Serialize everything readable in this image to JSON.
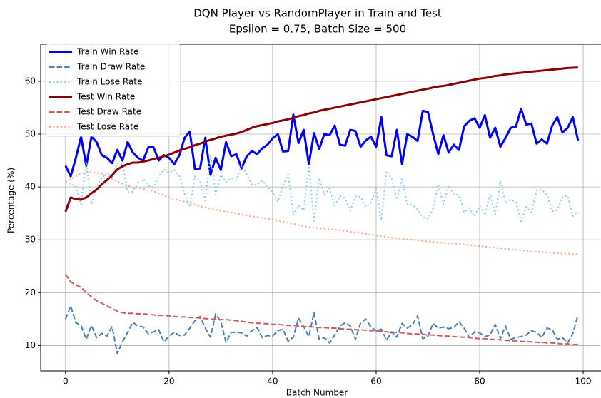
{
  "chart_data": {
    "type": "line",
    "title": "DQN Player vs RandomPlayer in Train and Test",
    "subtitle": "Epsilon = 0.75, Batch Size = 500",
    "x_label": "Batch Number",
    "y_label": "Percentage (%)",
    "x": [
      0,
      1,
      2,
      3,
      4,
      5,
      6,
      7,
      8,
      9,
      10,
      11,
      12,
      13,
      14,
      15,
      16,
      17,
      18,
      19,
      20,
      21,
      22,
      23,
      24,
      25,
      26,
      27,
      28,
      29,
      30,
      31,
      32,
      33,
      34,
      35,
      36,
      37,
      38,
      39,
      40,
      41,
      42,
      43,
      44,
      45,
      46,
      47,
      48,
      49,
      50,
      51,
      52,
      53,
      54,
      55,
      56,
      57,
      58,
      59,
      60,
      61,
      62,
      63,
      64,
      65,
      66,
      67,
      68,
      69,
      70,
      71,
      72,
      73,
      74,
      75,
      76,
      77,
      78,
      79,
      80,
      81,
      82,
      83,
      84,
      85,
      86,
      87,
      88,
      89,
      90,
      91,
      92,
      93,
      94,
      95,
      96,
      97,
      98,
      99
    ],
    "series": [
      {
        "name": "Train Win Rate",
        "color": "#0000ff",
        "linestyle": "solid",
        "linewidth": 3,
        "values": [
          44,
          42,
          45.5,
          49.5,
          44,
          49.5,
          48.5,
          46,
          45.5,
          44.5,
          47,
          45,
          48.5,
          46.5,
          45.5,
          45,
          47.5,
          47.5,
          45,
          46,
          45.5,
          44.3,
          46,
          49.3,
          50.5,
          43.3,
          43.5,
          49.3,
          42.3,
          45.5,
          43.2,
          48.5,
          45.8,
          46.2,
          43.5,
          45.8,
          46.8,
          46.2,
          47.3,
          48,
          49.2,
          50,
          46.7,
          46.8,
          53.7,
          48.3,
          50.8,
          44.3,
          50.2,
          47.2,
          50,
          49.8,
          51.6,
          48,
          47.8,
          50.8,
          50.6,
          47.6,
          48.8,
          49.5,
          47.6,
          53.2,
          46,
          45.8,
          50.8,
          44.3,
          50,
          49.5,
          48.7,
          54.4,
          54.2,
          50,
          46.2,
          49.8,
          46.5,
          48,
          47,
          51.5,
          52.5,
          53,
          51.2,
          53.6,
          49.3,
          51.2,
          47.6,
          49.3,
          51.2,
          51.4,
          54.8,
          51.8,
          52,
          48.2,
          49,
          48.2,
          51.6,
          53.2,
          50.3,
          51.2,
          53.2,
          48.8
        ]
      },
      {
        "name": "Train Draw Rate",
        "color": "#4682b4",
        "linestyle": "dashed",
        "linewidth": 2,
        "values": [
          15,
          17.5,
          14.3,
          13.8,
          11.2,
          13.8,
          11.5,
          12.3,
          11.8,
          13.6,
          8.5,
          10.7,
          12.5,
          14.4,
          13.7,
          13.5,
          12.2,
          12.6,
          13,
          10.7,
          11.8,
          12.5,
          11.9,
          12,
          13.3,
          14.7,
          15.5,
          13.3,
          11.6,
          16,
          14.5,
          10.6,
          12.5,
          12.5,
          12.4,
          11.8,
          12.8,
          13.4,
          11.5,
          11.9,
          11.8,
          12.8,
          13.1,
          10.8,
          11.6,
          15.2,
          13.6,
          11.7,
          16.2,
          11.2,
          11.5,
          10.5,
          12,
          13.7,
          14.3,
          13.7,
          11.2,
          14.3,
          15,
          13.5,
          12.8,
          13.1,
          11,
          12.6,
          11.6,
          14.2,
          13.3,
          13.9,
          15.6,
          11.3,
          11.8,
          14.2,
          13.3,
          13.5,
          13.2,
          13.4,
          14.5,
          13.3,
          11.5,
          12.6,
          12.4,
          11.7,
          12,
          14,
          11.3,
          13.7,
          11.2,
          11.5,
          11.7,
          12,
          12.8,
          12.5,
          11.5,
          13.3,
          13,
          11.2,
          11.5,
          10.5,
          12.3,
          15.8
        ]
      },
      {
        "name": "Train Lose Rate",
        "color": "#87ceeb",
        "linestyle": "dotted",
        "linewidth": 2,
        "values": [
          41,
          40.5,
          40.2,
          36.7,
          44.8,
          36.7,
          40,
          41.7,
          42.7,
          41.9,
          44.5,
          44.3,
          39,
          39.1,
          40.8,
          41.5,
          40.3,
          39.9,
          42,
          43.3,
          42.7,
          43.2,
          42.1,
          38.7,
          36.2,
          42,
          41,
          37.4,
          46.1,
          38.5,
          42.3,
          40.9,
          41.7,
          41.3,
          44.1,
          42.4,
          40.4,
          40.4,
          41.2,
          40.1,
          39,
          37.2,
          40.2,
          42.4,
          34.7,
          36.5,
          35.6,
          44,
          33.6,
          41.6,
          38.5,
          39.7,
          36.4,
          38.3,
          37.9,
          35.5,
          38.2,
          38.1,
          36.2,
          37,
          39.6,
          33.7,
          43,
          41.6,
          37.6,
          41.5,
          36.7,
          36.6,
          35.7,
          34.3,
          34,
          35.8,
          40.5,
          36.7,
          40.3,
          38.6,
          38.5,
          35.2,
          36,
          34.4,
          36.4,
          34.7,
          38.7,
          34.8,
          41.1,
          37,
          37.6,
          37.1,
          33.5,
          36.2,
          35.2,
          39.3,
          39.5,
          38.5,
          35.4,
          35.6,
          38.2,
          38.3,
          34.5,
          35.4
        ]
      },
      {
        "name": "Test Win Rate",
        "color": "#8b0000",
        "linestyle": "solid",
        "linewidth": 3,
        "values": [
          35.3,
          38,
          37.7,
          37.6,
          38,
          38.8,
          39.5,
          40.5,
          41.3,
          42.2,
          43.3,
          43.9,
          44.3,
          44.6,
          44.6,
          44.8,
          45,
          45.3,
          45.5,
          45.8,
          46.1,
          46.5,
          46.9,
          47.2,
          47.5,
          47.9,
          48.2,
          48.6,
          48.9,
          49.2,
          49.5,
          49.7,
          49.9,
          50.1,
          50.4,
          50.8,
          51.2,
          51.5,
          51.7,
          51.9,
          52.1,
          52.4,
          52.6,
          52.8,
          53.1,
          53.4,
          53.6,
          53.9,
          54.1,
          54.4,
          54.6,
          54.8,
          55,
          55.2,
          55.4,
          55.6,
          55.8,
          56,
          56.2,
          56.4,
          56.6,
          56.8,
          57,
          57.2,
          57.4,
          57.6,
          57.8,
          58,
          58.2,
          58.4,
          58.6,
          58.8,
          59,
          59.1,
          59.3,
          59.5,
          59.7,
          59.9,
          60.1,
          60.3,
          60.5,
          60.6,
          60.8,
          61,
          61.1,
          61.3,
          61.4,
          61.5,
          61.6,
          61.7,
          61.8,
          61.9,
          62,
          62.1,
          62.2,
          62.3,
          62.4,
          62.5,
          62.55,
          62.6
        ]
      },
      {
        "name": "Test Draw Rate",
        "color": "#cd5c5c",
        "linestyle": "dashed",
        "linewidth": 2,
        "values": [
          23.5,
          22,
          21.5,
          21,
          20,
          19.2,
          18.5,
          18,
          17.5,
          17,
          16.5,
          16.2,
          16.1,
          16.1,
          16,
          16,
          15.9,
          15.8,
          15.7,
          15.7,
          15.6,
          15.5,
          15.4,
          15.4,
          15.3,
          15.3,
          15.2,
          15.1,
          15,
          15,
          14.9,
          14.9,
          14.8,
          14.7,
          14.6,
          14.4,
          14.3,
          14.2,
          14.2,
          14.1,
          14,
          14,
          13.9,
          13.8,
          13.8,
          13.7,
          13.6,
          13.6,
          13.5,
          13.4,
          13.4,
          13.3,
          13.3,
          13.2,
          13.1,
          13.1,
          13,
          13,
          12.9,
          12.8,
          12.8,
          12.7,
          12.6,
          12.5,
          12.5,
          12.4,
          12.3,
          12.2,
          12.2,
          12.1,
          12,
          12,
          11.9,
          11.8,
          11.8,
          11.7,
          11.6,
          11.6,
          11.5,
          11.4,
          11.3,
          11.3,
          11.2,
          11.1,
          11.1,
          11,
          10.9,
          10.9,
          10.8,
          10.7,
          10.7,
          10.6,
          10.6,
          10.5,
          10.5,
          10.4,
          10.3,
          10.3,
          10.2,
          10.2
        ]
      },
      {
        "name": "Test Lose Rate",
        "color": "#ffa07a",
        "linestyle": "dotted",
        "linewidth": 2,
        "values": [
          41,
          41.5,
          42,
          42.5,
          42.8,
          42.8,
          42.7,
          42.5,
          42.1,
          41.6,
          41,
          40.6,
          40.2,
          40,
          39.8,
          39.6,
          39.4,
          39.2,
          38.8,
          38.4,
          38,
          37.7,
          37.5,
          37.2,
          36.9,
          36.6,
          36.3,
          36.1,
          35.9,
          35.7,
          35.5,
          35.3,
          35.2,
          35,
          34.8,
          34.6,
          34.4,
          34.3,
          34.1,
          34,
          33.8,
          33.6,
          33.4,
          33.2,
          33,
          32.8,
          32.6,
          32.4,
          32.3,
          32.2,
          32.1,
          32,
          31.9,
          31.8,
          31.7,
          31.5,
          31.4,
          31.3,
          31.1,
          31,
          30.8,
          30.7,
          30.5,
          30.4,
          30.3,
          30.2,
          30.1,
          30,
          29.9,
          29.8,
          29.7,
          29.6,
          29.5,
          29.4,
          29.3,
          29.3,
          29.2,
          29.1,
          29,
          28.9,
          28.8,
          28.7,
          28.6,
          28.5,
          28.4,
          28.3,
          28.2,
          28.1,
          28,
          27.9,
          27.8,
          27.8,
          27.7,
          27.6,
          27.5,
          27.5,
          27.4,
          27.4,
          27.3,
          27.3
        ]
      }
    ],
    "xlim": [
      -4.8,
      103.3
    ],
    "xticks": [
      0,
      20,
      40,
      60,
      80,
      100
    ],
    "ylim": [
      5.2,
      67
    ],
    "yticks": [
      10,
      20,
      30,
      40,
      50,
      60
    ],
    "grid": true,
    "legend": "upper-left"
  }
}
